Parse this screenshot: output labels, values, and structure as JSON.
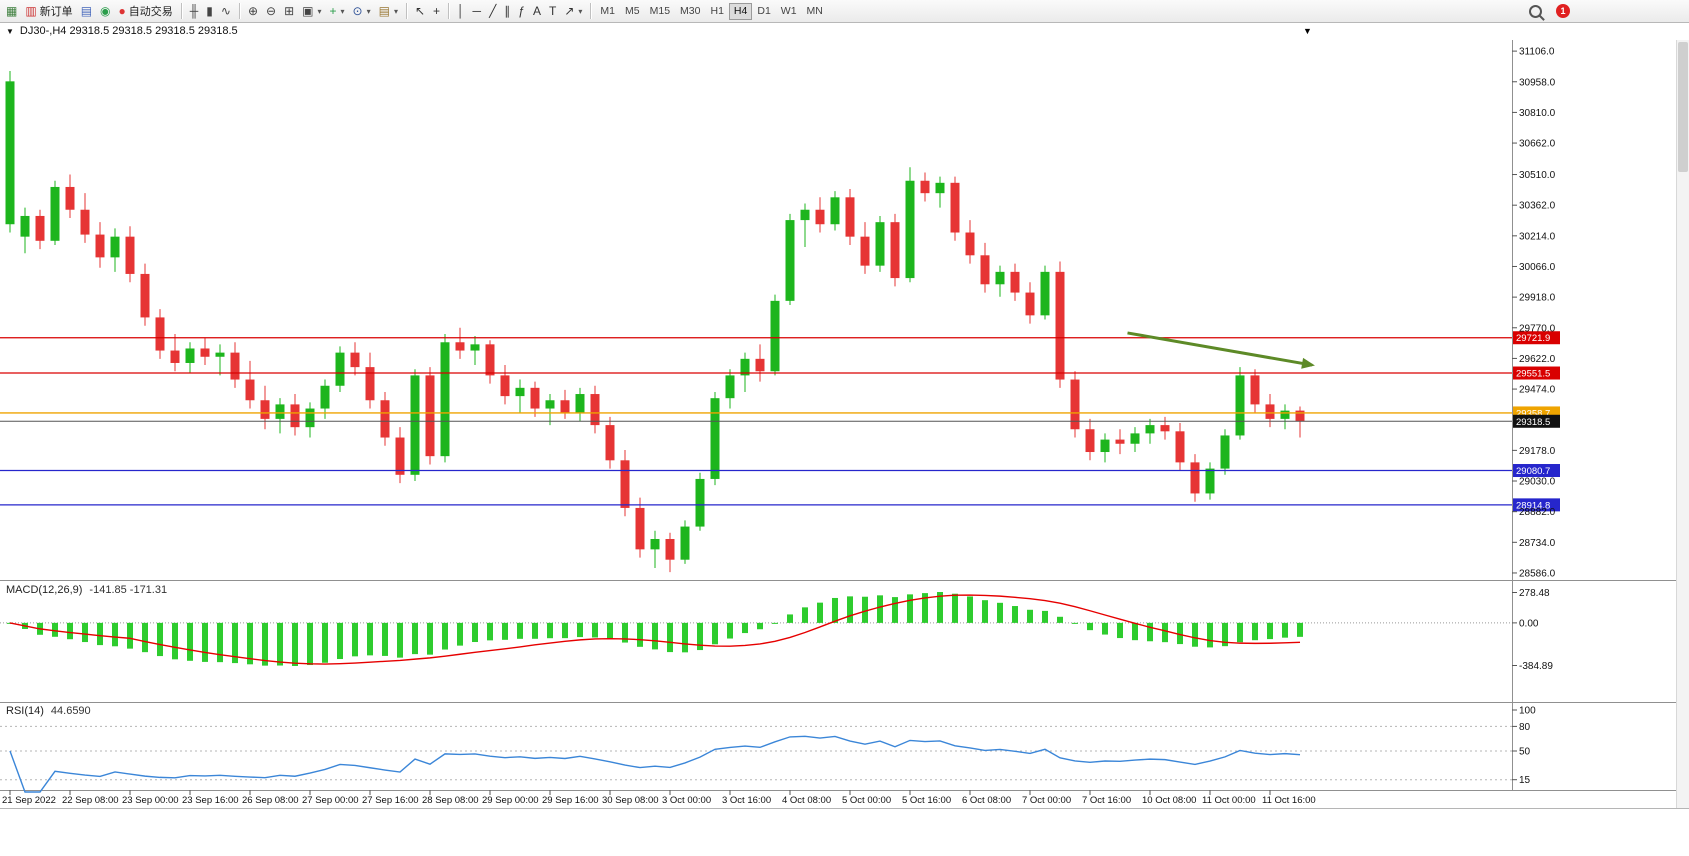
{
  "toolbar": {
    "notification_count": "1",
    "items": [
      {
        "name": "new-chart-button",
        "glyph": "▦",
        "color": "#3a7d3a"
      },
      {
        "name": "new-order-button",
        "glyph": "▥",
        "color": "#cc3333",
        "label": "新订单"
      },
      {
        "name": "profiles-button",
        "glyph": "▤",
        "color": "#4466bb"
      },
      {
        "name": "market-watch-button",
        "glyph": "◉",
        "color": "#2a9d4a"
      },
      {
        "name": "autotrading-button",
        "glyph": "●",
        "color": "#dd3333",
        "label": "自动交易"
      },
      {
        "type": "sep"
      },
      {
        "name": "bar-chart-button",
        "glyph": "╫",
        "color": "#444444"
      },
      {
        "name": "candlestick-chart-button",
        "glyph": "▮",
        "color": "#444444"
      },
      {
        "name": "line-chart-button",
        "glyph": "∿",
        "color": "#444444"
      },
      {
        "type": "sep"
      },
      {
        "name": "zoom-in-button",
        "glyph": "⊕",
        "color": "#444444"
      },
      {
        "name": "zoom-out-button",
        "glyph": "⊖",
        "color": "#444444"
      },
      {
        "name": "tile-windows-button",
        "glyph": "⊞",
        "color": "#444444"
      },
      {
        "name": "cascade-windows-button",
        "glyph": "▣",
        "color": "#444444",
        "dropdown": true
      },
      {
        "name": "add-indicator-button",
        "glyph": "+",
        "color": "#2a9d4a",
        "dropdown": true
      },
      {
        "name": "period-button",
        "glyph": "⊙",
        "color": "#335599",
        "dropdown": true
      },
      {
        "name": "template-button",
        "glyph": "▤",
        "color": "#997733",
        "dropdown": true
      },
      {
        "type": "sep"
      },
      {
        "name": "cursor-button",
        "glyph": "↖",
        "color": "#333333"
      },
      {
        "name": "crosshair-button",
        "glyph": "+",
        "color": "#333333"
      },
      {
        "type": "sep"
      },
      {
        "name": "vertical-line-button",
        "glyph": "│",
        "color": "#333333"
      },
      {
        "name": "horizontal-line-button",
        "glyph": "─",
        "color": "#333333"
      },
      {
        "name": "trendline-button",
        "glyph": "╱",
        "color": "#333333"
      },
      {
        "name": "equidistant-channel-button",
        "glyph": "∥",
        "color": "#333333"
      },
      {
        "name": "fibonacci-button",
        "glyph": "ƒ",
        "color": "#333333"
      },
      {
        "name": "text-button",
        "glyph": "A",
        "color": "#333333"
      },
      {
        "name": "text-label-button",
        "glyph": "T",
        "color": "#333333"
      },
      {
        "name": "arrows-button",
        "glyph": "↗",
        "color": "#333333",
        "dropdown": true
      },
      {
        "type": "sep"
      },
      {
        "name": "timeframe-m1-button",
        "tf": true,
        "label": "M1"
      },
      {
        "name": "timeframe-m5-button",
        "tf": true,
        "label": "M5"
      },
      {
        "name": "timeframe-m15-button",
        "tf": true,
        "label": "M15"
      },
      {
        "name": "timeframe-m30-button",
        "tf": true,
        "label": "M30"
      },
      {
        "name": "timeframe-h1-button",
        "tf": true,
        "label": "H1"
      },
      {
        "name": "timeframe-h4-button",
        "tf": true,
        "label": "H4",
        "active": true
      },
      {
        "name": "timeframe-d1-button",
        "tf": true,
        "label": "D1"
      },
      {
        "name": "timeframe-w1-button",
        "tf": true,
        "label": "W1"
      },
      {
        "name": "timeframe-mn-button",
        "tf": true,
        "label": "MN"
      }
    ]
  },
  "chart_data": {
    "type": "candlestick",
    "symbol": "DJ30-",
    "timeframe": "H4",
    "title": "DJ30-,H4  29318.5 29318.5 29318.5 29318.5",
    "current_price": 29318.5,
    "colors": {
      "up": "#1db51d",
      "down": "#e63434",
      "background": "#ffffff"
    },
    "ohlc": [
      [
        30270,
        31010,
        30230,
        30960
      ],
      [
        30210,
        30350,
        30130,
        30310
      ],
      [
        30310,
        30340,
        30150,
        30190
      ],
      [
        30190,
        30480,
        30170,
        30450
      ],
      [
        30450,
        30510,
        30300,
        30340
      ],
      [
        30340,
        30420,
        30180,
        30220
      ],
      [
        30220,
        30280,
        30060,
        30110
      ],
      [
        30110,
        30250,
        30040,
        30210
      ],
      [
        30210,
        30260,
        29990,
        30030
      ],
      [
        30030,
        30080,
        29780,
        29820
      ],
      [
        29820,
        29860,
        29620,
        29660
      ],
      [
        29660,
        29740,
        29560,
        29600
      ],
      [
        29600,
        29700,
        29550,
        29670
      ],
      [
        29670,
        29720,
        29590,
        29630
      ],
      [
        29630,
        29690,
        29540,
        29650
      ],
      [
        29650,
        29700,
        29480,
        29520
      ],
      [
        29520,
        29610,
        29380,
        29420
      ],
      [
        29420,
        29490,
        29280,
        29330
      ],
      [
        29330,
        29430,
        29260,
        29400
      ],
      [
        29400,
        29450,
        29250,
        29290
      ],
      [
        29290,
        29410,
        29240,
        29380
      ],
      [
        29380,
        29520,
        29330,
        29490
      ],
      [
        29490,
        29680,
        29460,
        29650
      ],
      [
        29650,
        29700,
        29540,
        29580
      ],
      [
        29580,
        29650,
        29380,
        29420
      ],
      [
        29420,
        29460,
        29200,
        29240
      ],
      [
        29240,
        29290,
        29020,
        29060
      ],
      [
        29060,
        29570,
        29030,
        29540
      ],
      [
        29540,
        29580,
        29110,
        29150
      ],
      [
        29150,
        29740,
        29120,
        29700
      ],
      [
        29700,
        29770,
        29620,
        29660
      ],
      [
        29660,
        29730,
        29590,
        29690
      ],
      [
        29690,
        29710,
        29500,
        29540
      ],
      [
        29540,
        29590,
        29400,
        29440
      ],
      [
        29440,
        29520,
        29360,
        29480
      ],
      [
        29480,
        29510,
        29340,
        29380
      ],
      [
        29380,
        29450,
        29300,
        29420
      ],
      [
        29420,
        29470,
        29330,
        29360
      ],
      [
        29360,
        29480,
        29320,
        29450
      ],
      [
        29450,
        29490,
        29260,
        29300
      ],
      [
        29300,
        29340,
        29090,
        29130
      ],
      [
        29130,
        29180,
        28860,
        28900
      ],
      [
        28900,
        28950,
        28660,
        28700
      ],
      [
        28700,
        28790,
        28610,
        28750
      ],
      [
        28750,
        28780,
        28590,
        28650
      ],
      [
        28650,
        28840,
        28630,
        28810
      ],
      [
        28810,
        29070,
        28790,
        29040
      ],
      [
        29040,
        29460,
        29010,
        29430
      ],
      [
        29430,
        29570,
        29380,
        29540
      ],
      [
        29540,
        29650,
        29460,
        29620
      ],
      [
        29620,
        29690,
        29510,
        29560
      ],
      [
        29560,
        29930,
        29540,
        29900
      ],
      [
        29900,
        30320,
        29880,
        30290
      ],
      [
        30290,
        30370,
        30160,
        30340
      ],
      [
        30340,
        30400,
        30230,
        30270
      ],
      [
        30270,
        30430,
        30240,
        30400
      ],
      [
        30400,
        30440,
        30170,
        30210
      ],
      [
        30210,
        30280,
        30030,
        30070
      ],
      [
        30070,
        30310,
        30040,
        30280
      ],
      [
        30280,
        30320,
        29970,
        30010
      ],
      [
        30010,
        30545,
        29990,
        30480
      ],
      [
        30480,
        30520,
        30380,
        30420
      ],
      [
        30420,
        30500,
        30350,
        30470
      ],
      [
        30470,
        30500,
        30190,
        30230
      ],
      [
        30230,
        30290,
        30080,
        30120
      ],
      [
        30120,
        30180,
        29940,
        29980
      ],
      [
        29980,
        30070,
        29920,
        30040
      ],
      [
        30040,
        30080,
        29900,
        29940
      ],
      [
        29940,
        29990,
        29790,
        29830
      ],
      [
        29830,
        30070,
        29810,
        30040
      ],
      [
        30040,
        30090,
        29480,
        29520
      ],
      [
        29520,
        29560,
        29240,
        29280
      ],
      [
        29280,
        29330,
        29130,
        29170
      ],
      [
        29170,
        29260,
        29120,
        29230
      ],
      [
        29230,
        29280,
        29160,
        29210
      ],
      [
        29210,
        29290,
        29170,
        29260
      ],
      [
        29260,
        29330,
        29210,
        29300
      ],
      [
        29300,
        29340,
        29230,
        29270
      ],
      [
        29270,
        29310,
        29080,
        29120
      ],
      [
        29120,
        29160,
        28930,
        28970
      ],
      [
        28970,
        29120,
        28940,
        29090
      ],
      [
        29090,
        29280,
        29060,
        29250
      ],
      [
        29250,
        29580,
        29230,
        29540
      ],
      [
        29540,
        29570,
        29360,
        29400
      ],
      [
        29400,
        29450,
        29290,
        29330
      ],
      [
        29330,
        29400,
        29280,
        29370
      ],
      [
        29370,
        29390,
        29240,
        29318.5
      ]
    ],
    "label_every": 4,
    "time_labels": [
      "21 Sep 2022",
      "22 Sep 08:00",
      "23 Sep 00:00",
      "23 Sep 16:00",
      "26 Sep 08:00",
      "27 Sep 00:00",
      "27 Sep 16:00",
      "28 Sep 08:00",
      "29 Sep 00:00",
      "29 Sep 16:00",
      "30 Sep 08:00",
      "3 Oct 00:00",
      "3 Oct 16:00",
      "4 Oct 08:00",
      "5 Oct 00:00",
      "5 Oct 16:00",
      "6 Oct 08:00",
      "7 Oct 00:00",
      "7 Oct 16:00",
      "10 Oct 08:00",
      "11 Oct 00:00",
      "11 Oct 16:00"
    ],
    "price_axis": {
      "labels": [
        "31106.0",
        "30958.0",
        "30810.0",
        "30662.0",
        "30510.0",
        "30362.0",
        "30214.0",
        "30066.0",
        "29918.0",
        "29770.0",
        "29622.0",
        "29474.0",
        "29178.0",
        "29030.0",
        "28882.0",
        "28734.0",
        "28586.0"
      ],
      "min": 28586.0,
      "max": 31106.0
    },
    "horizontal_lines": [
      {
        "price": 29721.9,
        "color": "#d90000",
        "tag": "29721.9"
      },
      {
        "price": 29551.5,
        "color": "#d90000",
        "tag": "29551.5"
      },
      {
        "price": 29358.7,
        "color": "#efa400",
        "tag": "29358.7"
      },
      {
        "price": 29318.5,
        "color": "#555555",
        "tag": "29318.5",
        "tag_bg": "#111111",
        "width": 1
      },
      {
        "price": 29080.7,
        "color": "#2626cc",
        "tag": "29080.7"
      },
      {
        "price": 28914.8,
        "color": "#2626cc",
        "tag": "28914.8"
      }
    ],
    "trend_arrow": {
      "from_index": 74.5,
      "from_price": 29745,
      "to_index": 86.8,
      "to_price": 29590,
      "color": "#5d8a27"
    },
    "indicators": {
      "macd": {
        "label": "MACD(12,26,9)",
        "values": "-141.85 -171.31",
        "scale_labels": [
          "278.48",
          "0.00",
          "-384.89"
        ],
        "histogram_color": "#2ecc2e",
        "signal_color": "#e60000"
      },
      "rsi": {
        "label": "RSI(14)",
        "value": "44.6590",
        "levels": [
          "100",
          "80",
          "50",
          "15"
        ],
        "line_color": "#3b86d8"
      }
    }
  }
}
